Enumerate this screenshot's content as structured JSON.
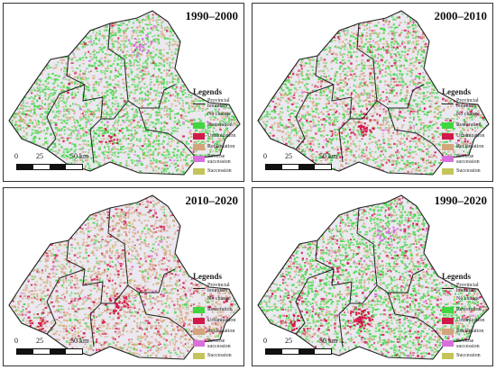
{
  "panels": [
    {
      "period": "1990–2000",
      "mix": [
        0.65,
        0.04,
        0.27,
        0.02,
        0.02
      ],
      "dense": 0.62,
      "hotspots": [
        {
          "x": 150,
          "y": 45,
          "c": 3,
          "n": 26
        },
        {
          "x": 118,
          "y": 148,
          "c": 1,
          "n": 18
        },
        {
          "x": 18,
          "y": 125,
          "c": 2,
          "n": 14
        }
      ]
    },
    {
      "period": "2000–2010",
      "mix": [
        0.44,
        0.16,
        0.36,
        0.02,
        0.02
      ],
      "dense": 0.58,
      "hotspots": [
        {
          "x": 120,
          "y": 135,
          "c": 1,
          "n": 34
        },
        {
          "x": 130,
          "y": 100,
          "c": 2,
          "n": 18
        }
      ]
    },
    {
      "period": "2010–2020",
      "mix": [
        0.14,
        0.2,
        0.6,
        0.02,
        0.04
      ],
      "dense": 0.55,
      "hotspots": [
        {
          "x": 125,
          "y": 130,
          "c": 1,
          "n": 40
        },
        {
          "x": 40,
          "y": 150,
          "c": 1,
          "n": 22
        },
        {
          "x": 135,
          "y": 40,
          "c": 2,
          "n": 18
        }
      ]
    },
    {
      "period": "1990–2020",
      "mix": [
        0.6,
        0.17,
        0.19,
        0.02,
        0.02
      ],
      "dense": 0.66,
      "hotspots": [
        {
          "x": 118,
          "y": 145,
          "c": 1,
          "n": 80
        },
        {
          "x": 150,
          "y": 48,
          "c": 3,
          "n": 22
        },
        {
          "x": 45,
          "y": 152,
          "c": 1,
          "n": 26
        }
      ]
    }
  ],
  "legend": {
    "title": "Legends",
    "items": [
      {
        "label": "Provincial boundary",
        "type": "line",
        "color": "#222222"
      },
      {
        "label": "No change",
        "type": "box",
        "color": "#ebe8f0"
      },
      {
        "label": "Restoration",
        "type": "box",
        "color": "#3fd63f"
      },
      {
        "label": "Urbanization",
        "type": "box",
        "color": "#d21a4a"
      },
      {
        "label": "Reclamation",
        "type": "box",
        "color": "#d3a57a"
      },
      {
        "label": "Reverse succession",
        "type": "box",
        "color": "#d96fdc"
      },
      {
        "label": "Succession",
        "type": "box",
        "color": "#c4c45a"
      }
    ]
  },
  "scale": {
    "zero": "0",
    "mid": "25",
    "end": "50 km"
  }
}
